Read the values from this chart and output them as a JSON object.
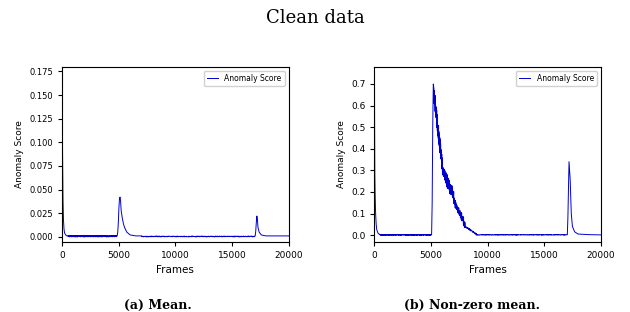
{
  "title": "Clean data",
  "title_fontsize": 13,
  "subplot_a_label": "(a) Mean.",
  "subplot_b_label": "(b) Non-zero mean.",
  "xlabel": "Frames",
  "ylabel": "Anomaly Score",
  "legend_label": "Anomaly Score",
  "line_color": "#0000cc",
  "line_width": 0.7,
  "plot_a": {
    "xlim": [
      0,
      20000
    ],
    "ylim": [
      -0.005,
      0.18
    ],
    "xticks": [
      0,
      5000,
      10000,
      15000,
      20000
    ],
    "yticks": [
      0.0,
      0.025,
      0.05,
      0.075,
      0.1,
      0.125,
      0.15,
      0.175
    ],
    "ytick_labels": [
      "0.000",
      "0.025",
      "0.050",
      "0.075",
      "0.100",
      "0.125",
      "0.150",
      "0.175"
    ]
  },
  "plot_b": {
    "xlim": [
      0,
      20000
    ],
    "ylim": [
      -0.03,
      0.78
    ],
    "xticks": [
      0,
      5000,
      10000,
      15000,
      20000
    ],
    "yticks": [
      0.0,
      0.1,
      0.2,
      0.3,
      0.4,
      0.5,
      0.6,
      0.7
    ],
    "ytick_labels": [
      "0.0",
      "0.1",
      "0.2",
      "0.3",
      "0.4",
      "0.5",
      "0.6",
      "0.7"
    ]
  }
}
